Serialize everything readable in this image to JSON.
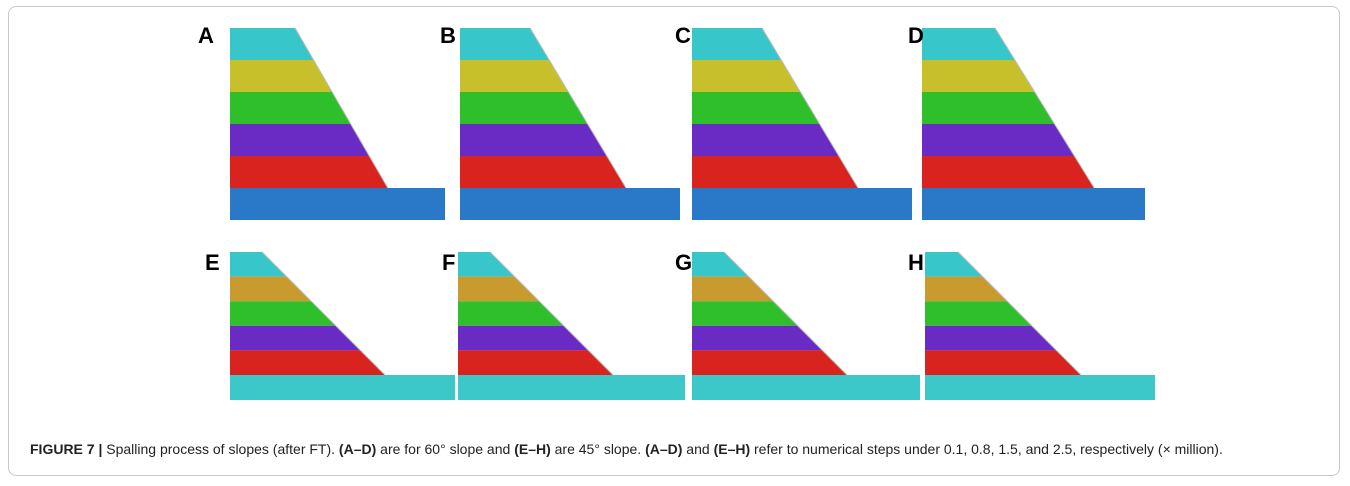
{
  "figure": {
    "panels": [
      {
        "label": "A"
      },
      {
        "label": "B"
      },
      {
        "label": "C"
      },
      {
        "label": "D"
      },
      {
        "label": "E"
      },
      {
        "label": "F"
      },
      {
        "label": "G"
      },
      {
        "label": "H"
      }
    ],
    "caption": {
      "label": "FIGURE 7 |",
      "parts": [
        " Spalling process of slopes (after FT). ",
        "(A–D)",
        " are for 60° slope and ",
        "(E–H)",
        " are 45° slope. ",
        "(A–D)",
        " and ",
        "(E–H)",
        " refer to numerical steps under 0.1, 0.8, 1.5, and 2.5, respectively (× million)."
      ]
    }
  }
}
